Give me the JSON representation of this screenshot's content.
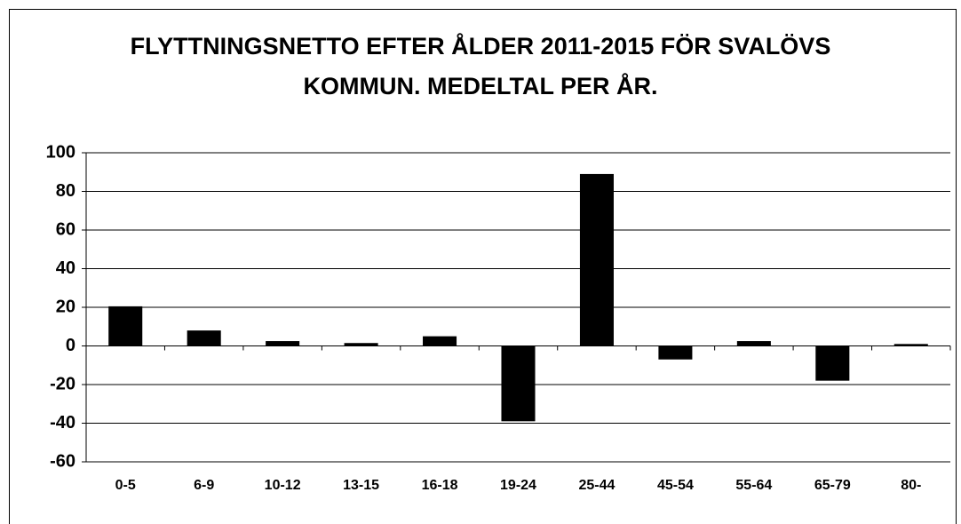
{
  "chart_data": {
    "type": "bar",
    "title": "FLYTTNINGSNETTO EFTER ÅLDER 2011-2015 FÖR SVALÖVS KOMMUN. MEDELTAL PER ÅR.",
    "categories": [
      "0-5",
      "6-9",
      "10-12",
      "13-15",
      "16-18",
      "19-24",
      "25-44",
      "45-54",
      "55-64",
      "65-79",
      "80-"
    ],
    "values": [
      20.5,
      8,
      2.5,
      1.5,
      5,
      -39,
      89,
      -7,
      2.5,
      -18,
      1
    ],
    "color": "#000000",
    "ylim": [
      -60,
      100
    ],
    "yticks": [
      -60,
      -40,
      -20,
      0,
      20,
      40,
      60,
      80,
      100
    ],
    "grid": true
  }
}
